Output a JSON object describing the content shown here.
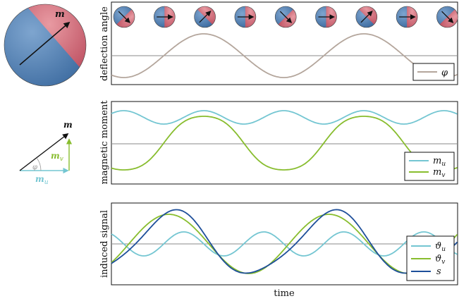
{
  "magnet": {
    "moment_symbol": "m"
  },
  "vector_diagram": {
    "m_label": "m",
    "mv_label": "m",
    "mv_sub": "v",
    "mu_label": "m",
    "mu_sub": "u",
    "phi_label": "φ",
    "colors": {
      "m": "#111111",
      "mu": "#74c6d2",
      "mv": "#88bd2e",
      "phi": "#9a9a9a"
    }
  },
  "panels": {
    "deflection": {
      "ylabel": "deflection angle",
      "legend": [
        {
          "symbol": "φ",
          "color": "#b4a69c"
        }
      ],
      "ball_angles_deg": [
        -45,
        0,
        45,
        0,
        -45,
        0,
        45,
        0,
        -45
      ]
    },
    "moment": {
      "ylabel": "magnetic moment",
      "legend": [
        {
          "symbol": "m",
          "sub": "u",
          "color": "#74c6d2"
        },
        {
          "symbol": "m",
          "sub": "v",
          "color": "#88bd2e"
        }
      ]
    },
    "signal": {
      "ylabel": "induced signal",
      "xlabel": "time",
      "legend": [
        {
          "symbol": "ϑ",
          "sub": "u",
          "color": "#74c6d2"
        },
        {
          "symbol": "ϑ",
          "sub": "v",
          "color": "#88bd2e"
        },
        {
          "symbol": "s",
          "sub": "",
          "color": "#1e4f9a"
        }
      ]
    }
  },
  "colors": {
    "baseline": "#8a8a8a",
    "ball_red": "#c25a66",
    "ball_blue": "#3f73a8"
  }
}
